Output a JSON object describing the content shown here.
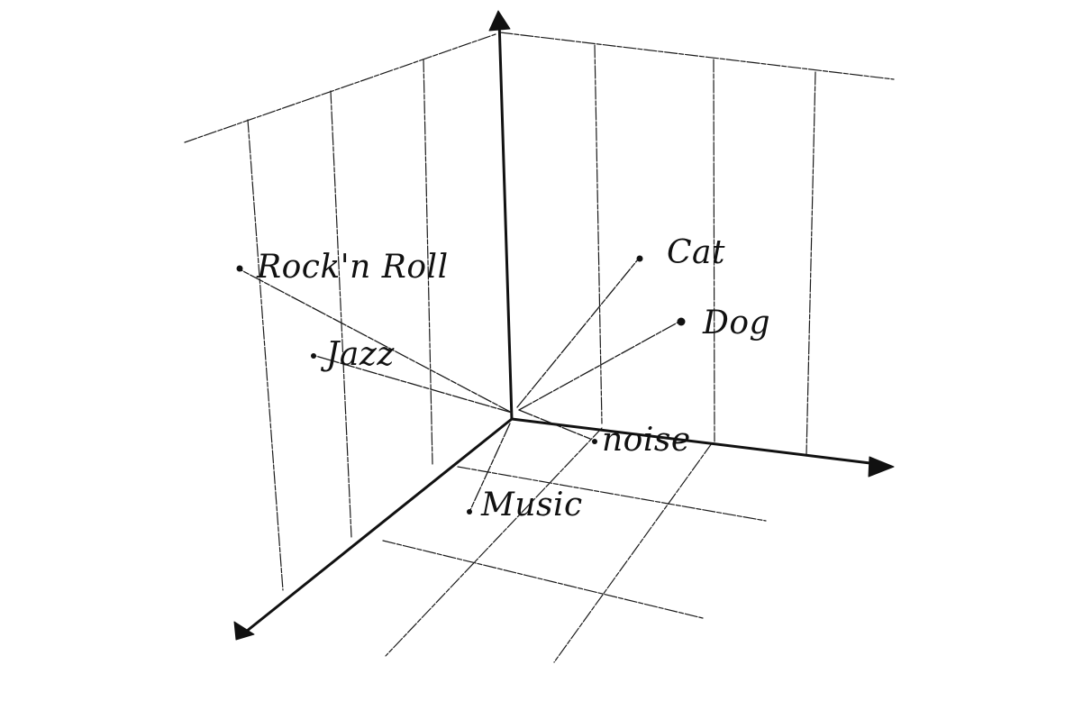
{
  "diagram": {
    "axes": [
      "vertical",
      "right",
      "front-left"
    ],
    "points": [
      {
        "id": "rock-n-roll",
        "label": "Rock'n Roll"
      },
      {
        "id": "jazz",
        "label": "Jazz"
      },
      {
        "id": "cat",
        "label": "Cat"
      },
      {
        "id": "dog",
        "label": "Dog"
      },
      {
        "id": "noise",
        "label": "noise"
      },
      {
        "id": "music",
        "label": "Music"
      }
    ]
  }
}
